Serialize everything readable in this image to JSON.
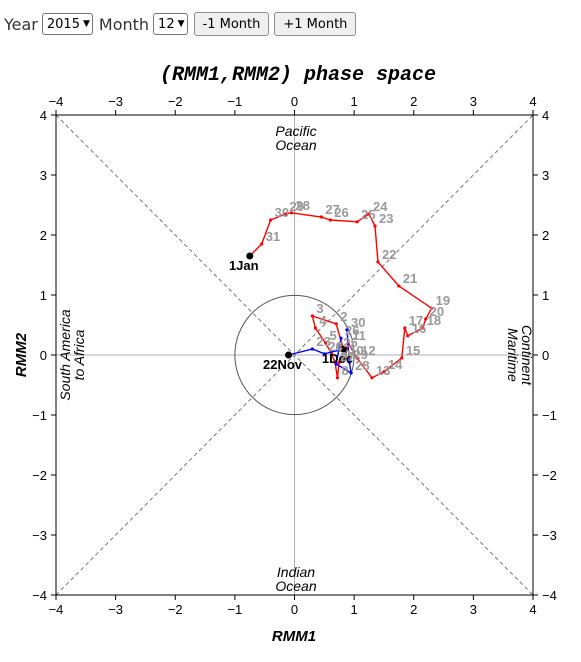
{
  "controls": {
    "year_label": "Year",
    "year_value": "2015",
    "month_label": "Month",
    "month_value": "12",
    "prev_button": "-1 Month",
    "next_button": "+1 Month"
  },
  "chart_data": {
    "type": "scatter",
    "title": "(RMM1,RMM2) phase space",
    "xlabel": "RMM1",
    "ylabel": "RMM2",
    "xlim": [
      -4,
      4
    ],
    "ylim": [
      -4,
      4
    ],
    "ticks": [
      -4,
      -3,
      -2,
      -1,
      0,
      1,
      2,
      3,
      4
    ],
    "region_labels": {
      "top": [
        "Pacific",
        "Ocean"
      ],
      "bottom": [
        "Indian",
        "Ocean"
      ],
      "left": [
        "South America",
        "to Africa"
      ],
      "right": [
        "Maritime",
        "Continent"
      ]
    },
    "colors": {
      "red_series": "#ff0000",
      "blue_series": "#0000ff",
      "day_label": "#999999"
    },
    "series": [
      {
        "color": "red",
        "points": [
          {
            "x": -0.75,
            "y": 1.65,
            "label": "1Jan"
          },
          {
            "x": -0.55,
            "y": 1.85,
            "label": "31"
          },
          {
            "x": -0.4,
            "y": 2.25,
            "label": "30"
          },
          {
            "x": -0.15,
            "y": 2.35,
            "label": "29"
          },
          {
            "x": -0.05,
            "y": 2.37,
            "label": "28"
          },
          {
            "x": 0.45,
            "y": 2.3,
            "label": "27"
          },
          {
            "x": 0.6,
            "y": 2.25,
            "label": "26"
          },
          {
            "x": 1.05,
            "y": 2.22,
            "label": "25"
          },
          {
            "x": 1.25,
            "y": 2.35,
            "label": "24"
          },
          {
            "x": 1.35,
            "y": 2.15,
            "label": "23"
          },
          {
            "x": 1.4,
            "y": 1.55,
            "label": "22"
          },
          {
            "x": 1.75,
            "y": 1.15,
            "label": "21"
          },
          {
            "x": 2.3,
            "y": 0.78,
            "label": "19"
          },
          {
            "x": 2.2,
            "y": 0.6,
            "label": "20"
          },
          {
            "x": 2.15,
            "y": 0.45,
            "label": "18"
          },
          {
            "x": 1.9,
            "y": 0.32,
            "label": "16"
          },
          {
            "x": 1.85,
            "y": 0.45,
            "label": "17"
          },
          {
            "x": 1.8,
            "y": -0.05,
            "label": "15"
          },
          {
            "x": 1.5,
            "y": -0.28,
            "label": "14"
          },
          {
            "x": 1.3,
            "y": -0.38,
            "label": "13"
          },
          {
            "x": 1.05,
            "y": -0.05,
            "label": "12"
          },
          {
            "x": 0.9,
            "y": 0.2,
            "label": "11"
          },
          {
            "x": 0.85,
            "y": -0.05,
            "label": "10"
          },
          {
            "x": 0.75,
            "y": -0.12,
            "label": "9"
          },
          {
            "x": 0.72,
            "y": -0.38,
            "label": "8"
          },
          {
            "x": 0.68,
            "y": -0.12,
            "label": "7"
          },
          {
            "x": 0.62,
            "y": 0.02,
            "label": "6"
          },
          {
            "x": 0.52,
            "y": 0.2,
            "label": "5"
          },
          {
            "x": 0.35,
            "y": 0.45,
            "label": "4"
          },
          {
            "x": 0.3,
            "y": 0.65,
            "label": "3"
          },
          {
            "x": 0.7,
            "y": 0.52,
            "label": "2"
          },
          {
            "x": 0.82,
            "y": 0.1,
            "label": "1Dec"
          }
        ]
      },
      {
        "color": "blue",
        "points": [
          {
            "x": -0.1,
            "y": 0.0,
            "label": "22Nov"
          },
          {
            "x": 0.3,
            "y": 0.1,
            "label": "23"
          },
          {
            "x": 0.5,
            "y": 0.02,
            "label": "24"
          },
          {
            "x": 0.75,
            "y": 0.08,
            "label": "25"
          },
          {
            "x": 0.78,
            "y": 0.28,
            "label": "26"
          },
          {
            "x": 0.7,
            "y": -0.15,
            "label": "27"
          },
          {
            "x": 0.95,
            "y": -0.3,
            "label": "28"
          },
          {
            "x": 0.92,
            "y": -0.12,
            "label": "29"
          },
          {
            "x": 0.88,
            "y": 0.42,
            "label": "30"
          }
        ]
      }
    ]
  }
}
